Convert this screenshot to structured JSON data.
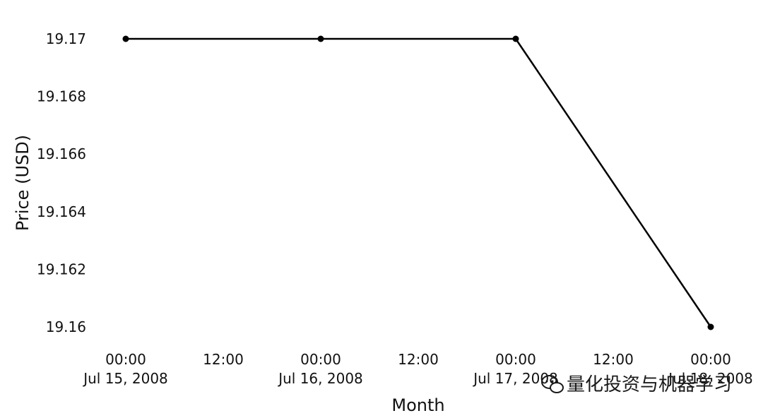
{
  "chart_data": {
    "type": "line",
    "xlabel": "Month",
    "ylabel": "Price (USD)",
    "x": [
      "2008-07-15 00:00",
      "2008-07-16 00:00",
      "2008-07-17 00:00",
      "2008-07-18 00:00"
    ],
    "series": [
      {
        "values": [
          19.17,
          19.17,
          19.17,
          19.16
        ]
      }
    ],
    "ylim": [
      19.16,
      19.17
    ],
    "y_ticks": [
      "19.17",
      "19.168",
      "19.166",
      "19.164",
      "19.162",
      "19.16"
    ],
    "x_ticks": [
      {
        "time": "00:00",
        "date": "Jul 15, 2008"
      },
      {
        "time": "12:00",
        "date": ""
      },
      {
        "time": "00:00",
        "date": "Jul 16, 2008"
      },
      {
        "time": "12:00",
        "date": ""
      },
      {
        "time": "00:00",
        "date": "Jul 17, 2008"
      },
      {
        "time": "12:00",
        "date": ""
      },
      {
        "time": "00:00",
        "date": "Jul 18, 2008"
      }
    ],
    "grid": false,
    "line_color": "#000000",
    "marker": "circle"
  },
  "watermark": {
    "text": "量化投资与机器学习",
    "icon": "wechat-icon"
  }
}
